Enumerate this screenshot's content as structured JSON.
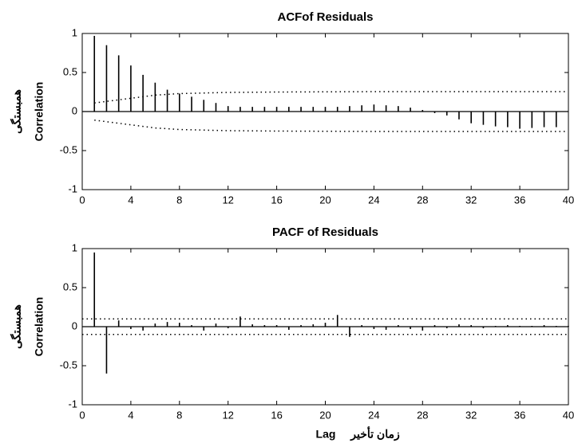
{
  "chart_data": [
    {
      "type": "stem",
      "title": "ACFof Residuals",
      "ylabel": "Correlation",
      "ylabel_fa": "همبستگی",
      "x": [
        1,
        2,
        3,
        4,
        5,
        6,
        7,
        8,
        9,
        10,
        11,
        12,
        13,
        14,
        15,
        16,
        17,
        18,
        19,
        20,
        21,
        22,
        23,
        24,
        25,
        26,
        27,
        28,
        29,
        30,
        31,
        32,
        33,
        34,
        35,
        36,
        37,
        38,
        39
      ],
      "values": [
        0.97,
        0.85,
        0.72,
        0.59,
        0.47,
        0.37,
        0.28,
        0.23,
        0.19,
        0.15,
        0.11,
        0.07,
        0.06,
        0.06,
        0.06,
        0.06,
        0.06,
        0.06,
        0.06,
        0.06,
        0.06,
        0.07,
        0.08,
        0.09,
        0.08,
        0.07,
        0.05,
        0.02,
        -0.02,
        -0.05,
        -0.1,
        -0.15,
        -0.17,
        -0.19,
        -0.2,
        -0.22,
        -0.21,
        -0.2,
        -0.2
      ],
      "bound_x": [
        1,
        2,
        4,
        6,
        8,
        12,
        16,
        24,
        32,
        40
      ],
      "upper_bound": [
        0.11,
        0.13,
        0.17,
        0.21,
        0.23,
        0.245,
        0.25,
        0.255,
        0.255,
        0.255
      ],
      "lower_bound": [
        -0.11,
        -0.13,
        -0.17,
        -0.21,
        -0.23,
        -0.245,
        -0.25,
        -0.255,
        -0.255,
        -0.255
      ],
      "color": "#000000",
      "xlim": [
        0,
        40
      ],
      "ylim": [
        -1,
        1
      ],
      "xticks": [
        0,
        4,
        8,
        12,
        16,
        20,
        24,
        28,
        32,
        36,
        40
      ],
      "yticks": [
        -1,
        -0.5,
        0,
        0.5,
        1
      ]
    },
    {
      "type": "stem",
      "title": "PACF of Residuals",
      "ylabel": "Correlation",
      "ylabel_fa": "همبستگی",
      "xlabel": "Lag",
      "xlabel_fa": "زمان تأخیر",
      "x": [
        1,
        2,
        3,
        4,
        5,
        6,
        7,
        8,
        9,
        10,
        11,
        12,
        13,
        14,
        15,
        16,
        17,
        18,
        19,
        20,
        21,
        22,
        23,
        24,
        25,
        26,
        27,
        28,
        29,
        30,
        31,
        32,
        33,
        34,
        35,
        36,
        37,
        38,
        39,
        40
      ],
      "values": [
        0.95,
        -0.6,
        0.08,
        -0.03,
        -0.05,
        0.04,
        0.06,
        0.05,
        0.02,
        -0.05,
        0.04,
        -0.02,
        0.13,
        0.03,
        0.02,
        0.02,
        -0.04,
        0.02,
        0.03,
        0.05,
        0.15,
        -0.13,
        0.02,
        -0.03,
        -0.04,
        0.02,
        -0.03,
        -0.05,
        0.02,
        -0.02,
        0.03,
        0.02,
        -0.02,
        0.01,
        0.02,
        0.01,
        0.01,
        0.02,
        0.01,
        0.01
      ],
      "bound_x": [
        0,
        40
      ],
      "upper_bound": [
        0.1,
        0.1
      ],
      "lower_bound": [
        -0.1,
        -0.1
      ],
      "color": "#000000",
      "xlim": [
        0,
        40
      ],
      "ylim": [
        -1,
        1
      ],
      "xticks": [
        0,
        4,
        8,
        12,
        16,
        20,
        24,
        28,
        32,
        36,
        40
      ],
      "yticks": [
        -1,
        -0.5,
        0,
        0.5,
        1
      ]
    }
  ]
}
